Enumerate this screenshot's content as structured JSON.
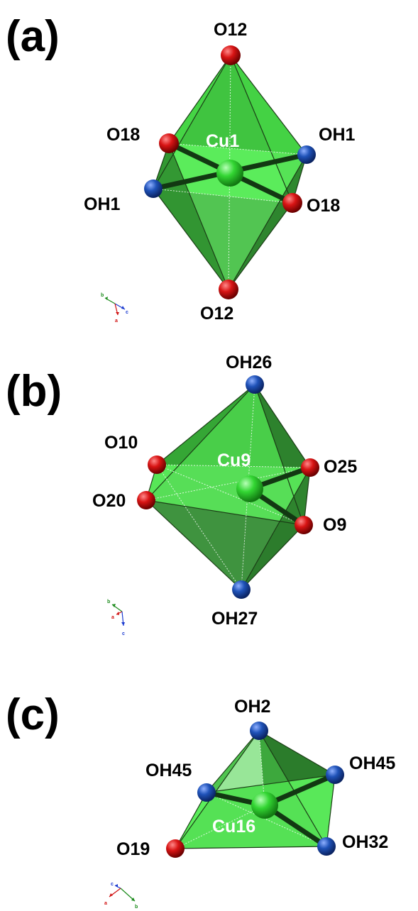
{
  "colors": {
    "oxygen": "#d01010",
    "hydroxyl": "#1a4aa8",
    "copper": "#2ecf2e",
    "face_light": "#4de84d",
    "face_mid": "#39c439",
    "face_dark": "#2a7d2a"
  },
  "panels": [
    {
      "label": "(a)",
      "center": "Cu1",
      "atoms": [
        "O12",
        "O18",
        "OH1",
        "OH1",
        "O18",
        "O12"
      ],
      "axes": [
        "b",
        "c",
        "a"
      ]
    },
    {
      "label": "(b)",
      "center": "Cu9",
      "atoms": [
        "OH26",
        "O10",
        "O25",
        "O20",
        "O9",
        "OH27"
      ],
      "axes": [
        "b",
        "a",
        "c"
      ]
    },
    {
      "label": "(c)",
      "center": "Cu16",
      "atoms": [
        "OH2",
        "OH45",
        "OH45",
        "O19",
        "OH32"
      ],
      "axes": [
        "c",
        "a",
        "b"
      ]
    }
  ]
}
